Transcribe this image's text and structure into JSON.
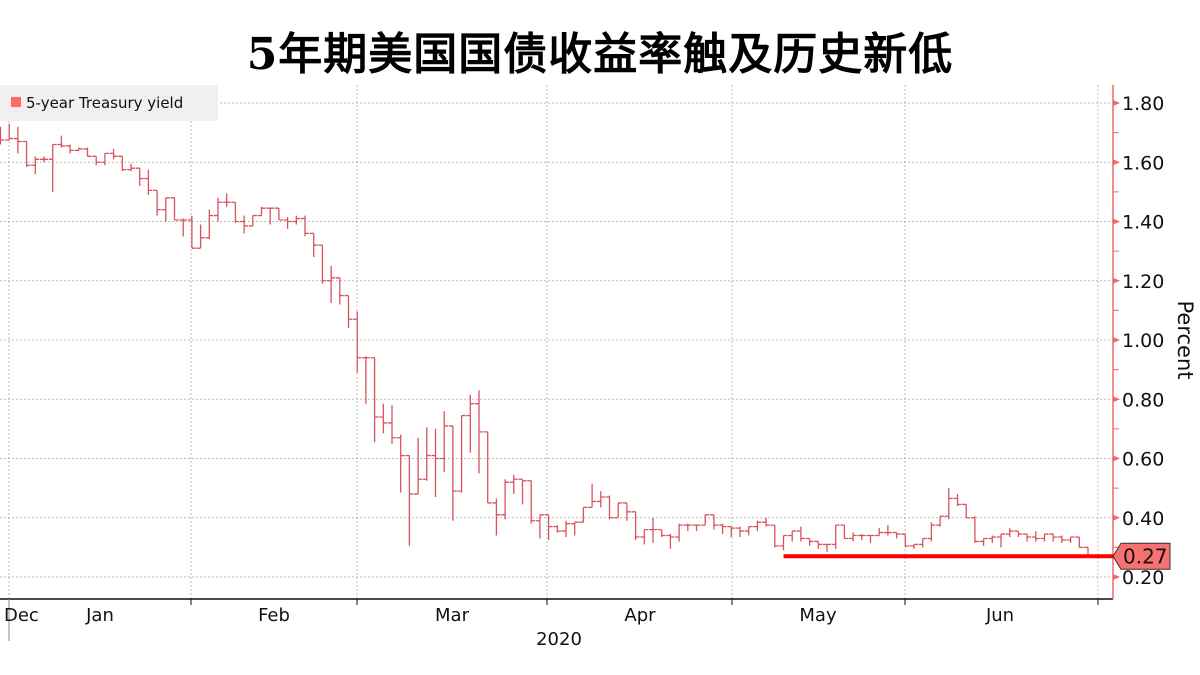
{
  "title": "5年期美国国债收益率触及历史新低",
  "chart_data": {
    "type": "ohlc",
    "title": "5年期美国国债收益率触及历史新低",
    "legend": {
      "label": "5-year Treasury yield",
      "placement": "top-left"
    },
    "series_color": "#d9535f",
    "legend_color": "#ff6b6b",
    "ylabel": "Percent",
    "ylim": [
      0.125,
      1.86
    ],
    "y_ticks": [
      "1.80",
      "1.60",
      "1.40",
      "1.20",
      "1.00",
      "0.80",
      "0.60",
      "0.40",
      "0.20"
    ],
    "x_ticks": [
      "Dec",
      "Jan",
      "Feb",
      "Mar",
      "Apr",
      "May",
      "Jun"
    ],
    "x_year": "2020",
    "grid": true,
    "last_value": {
      "label": "0.27",
      "value": 0.27,
      "color": "#ff0000",
      "box_color": "#f87171"
    },
    "high": [
      1.72,
      1.73,
      1.72,
      1.63,
      1.62,
      1.62,
      1.66,
      1.69,
      1.66,
      1.65,
      1.65,
      1.61,
      1.63,
      1.645,
      1.62,
      1.595,
      1.575,
      1.575,
      1.47,
      1.48,
      1.48,
      1.41,
      1.42,
      1.39,
      1.44,
      1.48,
      1.495,
      1.465,
      1.42,
      1.42,
      1.45,
      1.445,
      1.445,
      1.415,
      1.42,
      1.42,
      1.36,
      1.27,
      1.25,
      1.2,
      1.135,
      1.096,
      0.945,
      0.94,
      0.785,
      0.78,
      0.68,
      0.515,
      0.67,
      0.705,
      0.7,
      0.76,
      0.565,
      0.745,
      0.815,
      0.83,
      0.665,
      0.465,
      0.53,
      0.545,
      0.525,
      0.51,
      0.41,
      0.4,
      0.375,
      0.39,
      0.385,
      0.435,
      0.515,
      0.49,
      0.475,
      0.45,
      0.45,
      0.415,
      0.36,
      0.4,
      0.36,
      0.345,
      0.38,
      0.38,
      0.375,
      0.41,
      0.41,
      0.38,
      0.37,
      0.37,
      0.37,
      0.39,
      0.4,
      0.37,
      0.34,
      0.355,
      0.37,
      0.325,
      0.315,
      0.31,
      0.375,
      0.375,
      0.35,
      0.345,
      0.34,
      0.365,
      0.375,
      0.35,
      0.335,
      0.31,
      0.33,
      0.385,
      0.405,
      0.5,
      0.48,
      0.445,
      0.405,
      0.33,
      0.34,
      0.345,
      0.365,
      0.355,
      0.34,
      0.355,
      0.345,
      0.345,
      0.34,
      0.335,
      0.335,
      0.3
    ],
    "low": [
      1.66,
      1.68,
      1.63,
      1.585,
      1.56,
      1.6,
      1.5,
      1.65,
      1.63,
      1.64,
      1.62,
      1.59,
      1.59,
      1.61,
      1.57,
      1.57,
      1.52,
      1.49,
      1.42,
      1.4,
      1.405,
      1.35,
      1.31,
      1.32,
      1.34,
      1.4,
      1.45,
      1.395,
      1.36,
      1.39,
      1.42,
      1.39,
      1.405,
      1.375,
      1.39,
      1.35,
      1.28,
      1.19,
      1.125,
      1.12,
      1.04,
      0.89,
      0.785,
      0.655,
      0.685,
      0.65,
      0.485,
      0.305,
      0.485,
      0.525,
      0.47,
      0.555,
      0.39,
      0.485,
      0.62,
      0.55,
      0.45,
      0.34,
      0.395,
      0.48,
      0.445,
      0.38,
      0.33,
      0.325,
      0.35,
      0.335,
      0.34,
      0.39,
      0.44,
      0.435,
      0.395,
      0.4,
      0.39,
      0.325,
      0.31,
      0.315,
      0.335,
      0.295,
      0.32,
      0.355,
      0.355,
      0.38,
      0.36,
      0.345,
      0.335,
      0.335,
      0.34,
      0.355,
      0.37,
      0.3,
      0.29,
      0.32,
      0.32,
      0.305,
      0.295,
      0.285,
      0.295,
      0.33,
      0.32,
      0.325,
      0.315,
      0.34,
      0.34,
      0.33,
      0.3,
      0.295,
      0.3,
      0.32,
      0.37,
      0.395,
      0.44,
      0.4,
      0.315,
      0.305,
      0.315,
      0.3,
      0.335,
      0.335,
      0.32,
      0.32,
      0.32,
      0.32,
      0.315,
      0.315,
      0.3,
      0.27
    ],
    "close": [
      1.675,
      1.68,
      1.67,
      1.59,
      1.61,
      1.61,
      1.66,
      1.655,
      1.64,
      1.645,
      1.62,
      1.6,
      1.63,
      1.62,
      1.575,
      1.58,
      1.545,
      1.505,
      1.44,
      1.48,
      1.405,
      1.405,
      1.31,
      1.345,
      1.42,
      1.465,
      1.465,
      1.4,
      1.385,
      1.42,
      1.445,
      1.445,
      1.405,
      1.4,
      1.41,
      1.36,
      1.32,
      1.2,
      1.21,
      1.15,
      1.07,
      0.94,
      0.94,
      0.74,
      0.72,
      0.67,
      0.61,
      0.48,
      0.53,
      0.61,
      0.6,
      0.71,
      0.49,
      0.745,
      0.785,
      0.69,
      0.45,
      0.41,
      0.52,
      0.53,
      0.525,
      0.39,
      0.41,
      0.37,
      0.355,
      0.38,
      0.385,
      0.435,
      0.455,
      0.47,
      0.4,
      0.45,
      0.42,
      0.335,
      0.36,
      0.36,
      0.34,
      0.335,
      0.375,
      0.375,
      0.375,
      0.41,
      0.375,
      0.37,
      0.365,
      0.355,
      0.37,
      0.385,
      0.375,
      0.305,
      0.34,
      0.355,
      0.33,
      0.32,
      0.31,
      0.31,
      0.375,
      0.33,
      0.34,
      0.34,
      0.34,
      0.35,
      0.35,
      0.345,
      0.305,
      0.31,
      0.33,
      0.375,
      0.405,
      0.465,
      0.445,
      0.4,
      0.32,
      0.33,
      0.335,
      0.345,
      0.355,
      0.345,
      0.335,
      0.33,
      0.345,
      0.335,
      0.325,
      0.335,
      0.3,
      0.27
    ]
  }
}
